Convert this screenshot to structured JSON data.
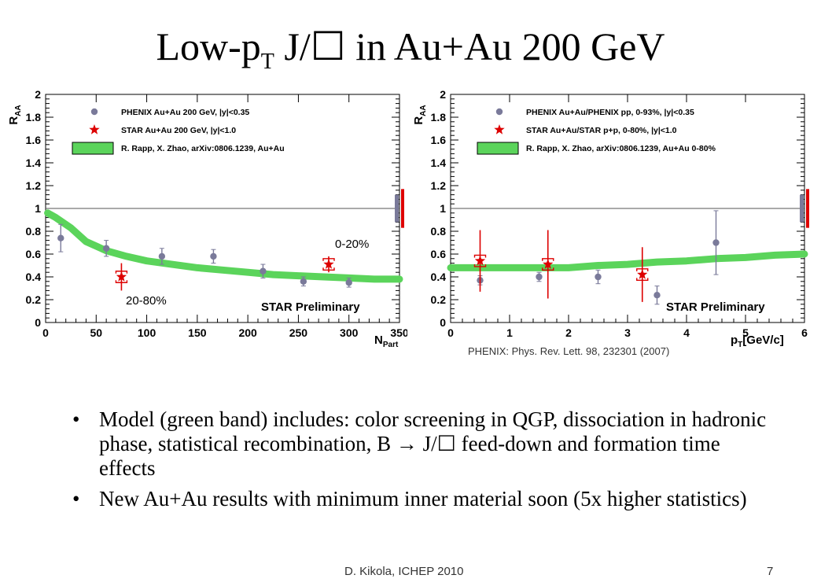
{
  "slide": {
    "title_main": "Low-p",
    "title_sub": "T",
    "title_rest": " J/☐ in Au+Au 200 GeV",
    "bullets": [
      "Model (green band) includes: color screening in QGP, dissociation in hadronic phase, statistical recombination, B → J/☐ feed-down and formation time effects",
      "New Au+Au results with minimum inner material soon (5x higher statistics)"
    ],
    "bullet_symbol": "•",
    "footer_author": "D. Kikola, ICHEP 2010",
    "footer_page": "7"
  },
  "chart_data": [
    {
      "type": "scatter",
      "xlabel": "N",
      "xlabel_sub": "Part",
      "ylabel": "R",
      "ylabel_sub": "AA",
      "xlim": [
        0,
        350
      ],
      "ylim": [
        0,
        2
      ],
      "xticks": [
        0,
        50,
        100,
        150,
        200,
        250,
        300,
        350
      ],
      "yticks": [
        0,
        0.2,
        0.4,
        0.6,
        0.8,
        1,
        1.2,
        1.4,
        1.6,
        1.8,
        2
      ],
      "ytick_labels": [
        "0",
        "0.2",
        "0.4",
        "0.6",
        "0.8",
        "1",
        "1.2",
        "1.4",
        "1.6",
        "1.8",
        "2"
      ],
      "reference_line": 1,
      "series": [
        {
          "name": "PHENIX Au+Au 200 GeV, |y|<0.35",
          "marker": "circle",
          "color": "#7a7a9a",
          "points": [
            {
              "x": 15,
              "y": 0.74,
              "err": 0.12
            },
            {
              "x": 60,
              "y": 0.65,
              "err": 0.07
            },
            {
              "x": 115,
              "y": 0.58,
              "err": 0.07
            },
            {
              "x": 166,
              "y": 0.58,
              "err": 0.06
            },
            {
              "x": 215,
              "y": 0.45,
              "err": 0.06
            },
            {
              "x": 255,
              "y": 0.36,
              "err": 0.04
            },
            {
              "x": 300,
              "y": 0.35,
              "err": 0.04
            }
          ]
        },
        {
          "name": "STAR Au+Au 200 GeV, |y|<1.0",
          "marker": "star",
          "color": "#dd0000",
          "points": [
            {
              "x": 75,
              "y": 0.4,
              "err": 0.12
            },
            {
              "x": 280,
              "y": 0.51,
              "err": 0.07
            }
          ]
        },
        {
          "name": "R. Rapp, X. Zhao, arXiv:0806.1239, Au+Au",
          "marker": "band",
          "color": "#5bd45b",
          "x": [
            2,
            10,
            25,
            40,
            60,
            80,
            100,
            125,
            150,
            175,
            200,
            225,
            250,
            275,
            300,
            325,
            350
          ],
          "y": [
            0.96,
            0.92,
            0.83,
            0.71,
            0.63,
            0.58,
            0.54,
            0.51,
            0.48,
            0.46,
            0.44,
            0.42,
            0.41,
            0.4,
            0.39,
            0.38,
            0.38
          ]
        }
      ],
      "annotations": [
        "20-80%",
        "0-20%",
        "STAR Preliminary"
      ]
    },
    {
      "type": "scatter",
      "xlabel": "p",
      "xlabel_sub": "T",
      "xlabel_rest": "[GeV/c]",
      "ylabel": "R",
      "ylabel_sub": "AA",
      "xlim": [
        0,
        6
      ],
      "ylim": [
        0,
        2
      ],
      "xticks": [
        0,
        1,
        2,
        3,
        4,
        5,
        6
      ],
      "yticks": [
        0,
        0.2,
        0.4,
        0.6,
        0.8,
        1,
        1.2,
        1.4,
        1.6,
        1.8,
        2
      ],
      "ytick_labels": [
        "0",
        "0.2",
        "0.4",
        "0.6",
        "0.8",
        "1",
        "1.2",
        "1.4",
        "1.6",
        "1.8",
        "2"
      ],
      "reference_line": 1,
      "series": [
        {
          "name": "PHENIX Au+Au/PHENIX pp, 0-93%, |y|<0.35",
          "marker": "circle",
          "color": "#7a7a9a",
          "points": [
            {
              "x": 0.5,
              "y": 0.37,
              "err": 0.04
            },
            {
              "x": 1.5,
              "y": 0.4,
              "err": 0.04
            },
            {
              "x": 2.5,
              "y": 0.4,
              "err": 0.06
            },
            {
              "x": 3.5,
              "y": 0.24,
              "err": 0.08
            },
            {
              "x": 4.5,
              "y": 0.7,
              "err": 0.28
            }
          ]
        },
        {
          "name": "STAR  Au+Au/STAR p+p, 0-80%, |y|<1.0",
          "marker": "star",
          "color": "#dd0000",
          "points": [
            {
              "x": 0.5,
              "y": 0.54,
              "err": 0.27
            },
            {
              "x": 1.65,
              "y": 0.51,
              "err": 0.3
            },
            {
              "x": 3.25,
              "y": 0.42,
              "err": 0.24
            }
          ]
        },
        {
          "name": "R. Rapp, X. Zhao, arXiv:0806.1239, Au+Au 0-80%",
          "marker": "band",
          "color": "#5bd45b",
          "x": [
            0,
            0.5,
            1,
            1.5,
            2,
            2.5,
            3,
            3.5,
            4,
            4.5,
            5,
            5.5,
            6
          ],
          "y": [
            0.48,
            0.48,
            0.48,
            0.48,
            0.48,
            0.5,
            0.51,
            0.53,
            0.54,
            0.56,
            0.57,
            0.59,
            0.6
          ]
        }
      ],
      "annotations": [
        "STAR Preliminary",
        "PHENIX: Phys. Rev. Lett. 98, 232301 (2007)"
      ]
    }
  ]
}
